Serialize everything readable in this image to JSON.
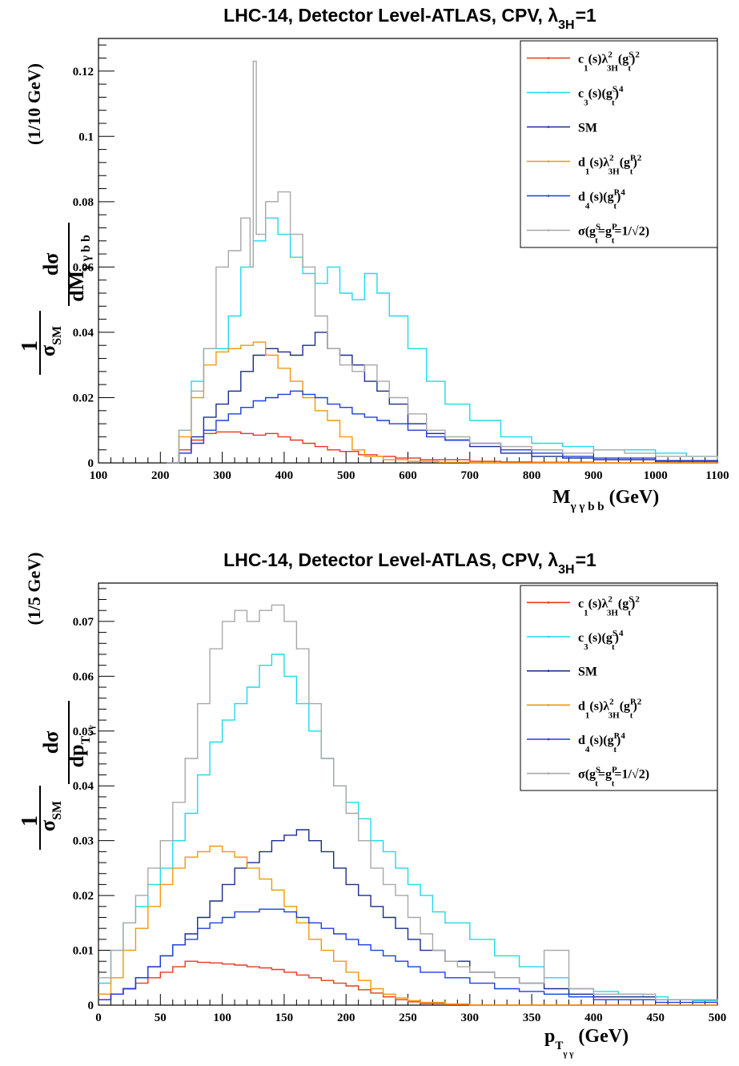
{
  "chart_data": [
    {
      "type": "line",
      "title": {
        "main": "LHC-14, Detector Level-ATLAS, CPV,  λ",
        "sub": "3H",
        "tail": "=1"
      },
      "xlabel": {
        "main": "M",
        "sub": "γ  γ b b",
        "tail": " (GeV)"
      },
      "ylabel": {
        "one": "1",
        "sigma": "σ",
        "sigma_sub": "SM",
        "num": "dσ",
        "den": "dM",
        "den_sub": "γ γ b b",
        "bin": "(1/10 GeV)"
      },
      "xlim": [
        100,
        1100
      ],
      "ylim": [
        0,
        0.13
      ],
      "xticks": [
        100,
        200,
        300,
        400,
        500,
        600,
        700,
        800,
        900,
        1000,
        1100
      ],
      "yticks": [
        0,
        0.02,
        0.04,
        0.06,
        0.08,
        0.1,
        0.12
      ],
      "ytick_labels": [
        "0",
        "0.02",
        "0.04",
        "0.06",
        "0.08",
        "0.1",
        "0.12"
      ],
      "grid": false,
      "legend_position": "top-right",
      "series": [
        {
          "label": {
            "a": "c",
            "a_sub": "1",
            "b": "(s)λ",
            "b_sup": "2",
            "b_sub": "3H",
            "c": "(g",
            "c_sup": "S",
            "c_sub": "t",
            "d": ")",
            "d_sup": "2"
          },
          "color": "#e8391c",
          "x": [
            210,
            230,
            250,
            270,
            290,
            310,
            330,
            350,
            370,
            390,
            410,
            430,
            450,
            470,
            490,
            520,
            550,
            580,
            620,
            660,
            700,
            750,
            800,
            900,
            1000,
            1100
          ],
          "y": [
            0,
            0.004,
            0.007,
            0.009,
            0.0095,
            0.0095,
            0.009,
            0.0085,
            0.009,
            0.008,
            0.007,
            0.006,
            0.005,
            0.004,
            0.0035,
            0.0025,
            0.002,
            0.0015,
            0.001,
            0.001,
            0.0005,
            0.0003,
            0.0002,
            0,
            0,
            0
          ]
        },
        {
          "label": {
            "a": "c",
            "a_sub": "3",
            "b": "(s)",
            "c": "(g",
            "c_sup": "S",
            "c_sub": "t",
            "d": ")",
            "d_sup": "4"
          },
          "color": "#1fd9e9",
          "x": [
            210,
            230,
            250,
            270,
            290,
            310,
            330,
            350,
            370,
            390,
            410,
            430,
            450,
            470,
            490,
            510,
            530,
            550,
            570,
            600,
            630,
            660,
            700,
            750,
            800,
            850,
            900,
            950,
            1000,
            1050,
            1100
          ],
          "y": [
            0,
            0.01,
            0.025,
            0.035,
            0.035,
            0.045,
            0.06,
            0.068,
            0.075,
            0.07,
            0.063,
            0.058,
            0.055,
            0.06,
            0.052,
            0.05,
            0.058,
            0.052,
            0.045,
            0.035,
            0.025,
            0.018,
            0.013,
            0.008,
            0.006,
            0.005,
            0.004,
            0.004,
            0.003,
            0.002,
            0.001
          ]
        },
        {
          "label": {
            "a": "SM"
          },
          "color": "#1a2c8c",
          "x": [
            210,
            230,
            250,
            270,
            290,
            310,
            330,
            350,
            370,
            390,
            410,
            430,
            450,
            470,
            490,
            510,
            530,
            550,
            570,
            600,
            630,
            660,
            700,
            750,
            800,
            850,
            900,
            1000,
            1100
          ],
          "y": [
            0,
            0.003,
            0.008,
            0.014,
            0.018,
            0.022,
            0.028,
            0.033,
            0.035,
            0.034,
            0.033,
            0.036,
            0.04,
            0.035,
            0.033,
            0.03,
            0.025,
            0.022,
            0.018,
            0.012,
            0.009,
            0.007,
            0.005,
            0.003,
            0.002,
            0.0015,
            0.001,
            0.0005,
            0.0003
          ]
        },
        {
          "label": {
            "a": "d",
            "a_sub": "1",
            "b": "(s)λ",
            "b_sup": "2",
            "b_sub": "3H",
            "c": "(g",
            "c_sup": "P",
            "c_sub": "t",
            "d": ")",
            "d_sup": "2"
          },
          "color": "#f4960e",
          "x": [
            210,
            230,
            250,
            270,
            290,
            310,
            330,
            350,
            370,
            390,
            410,
            430,
            450,
            470,
            490,
            510,
            530,
            560,
            600,
            650,
            700,
            800,
            900,
            1100
          ],
          "y": [
            0,
            0.008,
            0.02,
            0.03,
            0.034,
            0.035,
            0.036,
            0.037,
            0.033,
            0.029,
            0.025,
            0.02,
            0.016,
            0.013,
            0.008,
            0.004,
            0.002,
            0.001,
            0.0005,
            0.0002,
            0,
            0,
            0,
            0
          ]
        },
        {
          "label": {
            "a": "d",
            "a_sub": "4",
            "b": "(s)",
            "c": "(g",
            "c_sup": "P",
            "c_sub": "t",
            "d": ")",
            "d_sup": "4"
          },
          "color": "#1c3ee0",
          "x": [
            210,
            230,
            250,
            270,
            290,
            310,
            330,
            350,
            370,
            390,
            410,
            430,
            450,
            470,
            490,
            510,
            530,
            550,
            570,
            600,
            630,
            660,
            700,
            750,
            800,
            850,
            900,
            1000,
            1100
          ],
          "y": [
            0,
            0.003,
            0.006,
            0.01,
            0.013,
            0.015,
            0.017,
            0.019,
            0.02,
            0.021,
            0.022,
            0.021,
            0.02,
            0.018,
            0.017,
            0.015,
            0.014,
            0.013,
            0.012,
            0.01,
            0.008,
            0.007,
            0.006,
            0.004,
            0.003,
            0.002,
            0.0015,
            0.0007,
            0.0003
          ]
        },
        {
          "label": {
            "a": "σ(g",
            "a_sup": "S",
            "a_sub": "t",
            "b": "=g",
            "b_sup": "P",
            "b_sub": "t",
            "c": "=1/√2)"
          },
          "color": "#a8a8a8",
          "x": [
            210,
            230,
            250,
            270,
            290,
            310,
            330,
            345,
            350,
            355,
            370,
            390,
            410,
            430,
            450,
            470,
            490,
            510,
            530,
            550,
            570,
            600,
            630,
            660,
            700,
            750,
            800,
            850,
            900,
            950,
            1000,
            1100
          ],
          "y": [
            0,
            0.01,
            0.022,
            0.035,
            0.06,
            0.065,
            0.075,
            0.06,
            0.123,
            0.07,
            0.08,
            0.083,
            0.07,
            0.06,
            0.045,
            0.035,
            0.03,
            0.028,
            0.03,
            0.025,
            0.02,
            0.015,
            0.01,
            0.008,
            0.006,
            0.005,
            0.004,
            0.003,
            0.004,
            0.003,
            0.002,
            0.001
          ]
        }
      ]
    },
    {
      "type": "line",
      "title": {
        "main": "LHC-14, Detector Level-ATLAS, CPV,  λ",
        "sub": "3H",
        "tail": "=1"
      },
      "xlabel": {
        "main": "p",
        "sub": "T",
        "sub2": "γ γ",
        "tail": " (GeV)"
      },
      "ylabel": {
        "one": "1",
        "sigma": "σ",
        "sigma_sub": "SM",
        "num": "dσ",
        "den": "dp",
        "den_sub": "T",
        "den_sub2": "γ γ",
        "bin": "(1/5 GeV)"
      },
      "xlim": [
        0,
        500
      ],
      "ylim": [
        0,
        0.077
      ],
      "xticks": [
        0,
        50,
        100,
        150,
        200,
        250,
        300,
        350,
        400,
        450,
        500
      ],
      "yticks": [
        0,
        0.01,
        0.02,
        0.03,
        0.04,
        0.05,
        0.06,
        0.07
      ],
      "ytick_labels": [
        "0",
        "0.01",
        "0.02",
        "0.03",
        "0.04",
        "0.05",
        "0.06",
        "0.07"
      ],
      "grid": false,
      "legend_position": "top-right",
      "series": [
        {
          "label": {
            "a": "c",
            "a_sub": "1",
            "b": "(s)λ",
            "b_sup": "2",
            "b_sub": "3H",
            "c": "(g",
            "c_sup": "S",
            "c_sub": "t",
            "d": ")",
            "d_sup": "2"
          },
          "color": "#e8391c",
          "x": [
            0,
            10,
            20,
            30,
            40,
            50,
            60,
            70,
            80,
            90,
            100,
            110,
            120,
            130,
            140,
            150,
            160,
            170,
            180,
            190,
            200,
            210,
            220,
            230,
            240,
            250,
            260,
            280,
            300,
            350,
            400,
            450,
            500
          ],
          "y": [
            0.001,
            0.002,
            0.003,
            0.004,
            0.005,
            0.006,
            0.007,
            0.008,
            0.0078,
            0.0077,
            0.0075,
            0.0073,
            0.007,
            0.0068,
            0.0065,
            0.006,
            0.0055,
            0.005,
            0.0045,
            0.004,
            0.0035,
            0.0028,
            0.0022,
            0.0015,
            0.001,
            0.0006,
            0.0003,
            0.0001,
            0,
            0,
            0,
            0,
            0
          ]
        },
        {
          "label": {
            "a": "c",
            "a_sub": "3",
            "b": "(s)",
            "c": "(g",
            "c_sup": "S",
            "c_sub": "t",
            "d": ")",
            "d_sup": "4"
          },
          "color": "#1fd9e9",
          "x": [
            0,
            10,
            20,
            30,
            40,
            50,
            60,
            70,
            80,
            90,
            100,
            110,
            120,
            130,
            140,
            150,
            160,
            170,
            180,
            190,
            200,
            210,
            220,
            230,
            240,
            250,
            260,
            270,
            280,
            300,
            320,
            340,
            360,
            380,
            400,
            420,
            440,
            460,
            480,
            500
          ],
          "y": [
            0.004,
            0.01,
            0.015,
            0.018,
            0.022,
            0.025,
            0.03,
            0.035,
            0.042,
            0.048,
            0.052,
            0.055,
            0.058,
            0.062,
            0.064,
            0.06,
            0.055,
            0.05,
            0.045,
            0.04,
            0.037,
            0.034,
            0.03,
            0.028,
            0.025,
            0.022,
            0.02,
            0.017,
            0.015,
            0.012,
            0.009,
            0.007,
            0.005,
            0.003,
            0.0025,
            0.002,
            0.0015,
            0.001,
            0.0008,
            0.0005
          ]
        },
        {
          "label": {
            "a": "SM"
          },
          "color": "#1a2c8c",
          "x": [
            0,
            10,
            20,
            30,
            40,
            50,
            60,
            70,
            80,
            90,
            100,
            110,
            120,
            130,
            140,
            150,
            160,
            170,
            180,
            190,
            200,
            210,
            220,
            230,
            240,
            250,
            260,
            280,
            300,
            320,
            340,
            360,
            380,
            400,
            450,
            500
          ],
          "y": [
            0.001,
            0.002,
            0.003,
            0.005,
            0.007,
            0.009,
            0.011,
            0.013,
            0.016,
            0.019,
            0.022,
            0.025,
            0.026,
            0.028,
            0.03,
            0.031,
            0.032,
            0.03,
            0.028,
            0.025,
            0.022,
            0.02,
            0.018,
            0.016,
            0.014,
            0.012,
            0.01,
            0.008,
            0.006,
            0.005,
            0.004,
            0.003,
            0.002,
            0.0015,
            0.001,
            0.0005
          ]
        },
        {
          "label": {
            "a": "d",
            "a_sub": "1",
            "b": "(s)λ",
            "b_sup": "2",
            "b_sub": "3H",
            "c": "(g",
            "c_sup": "P",
            "c_sub": "t",
            "d": ")",
            "d_sup": "2"
          },
          "color": "#f4960e",
          "x": [
            0,
            10,
            20,
            30,
            40,
            50,
            60,
            70,
            80,
            90,
            100,
            110,
            120,
            130,
            140,
            150,
            160,
            170,
            180,
            190,
            200,
            210,
            220,
            230,
            240,
            250,
            260,
            280,
            300,
            350,
            400,
            500
          ],
          "y": [
            0.002,
            0.005,
            0.01,
            0.014,
            0.018,
            0.022,
            0.025,
            0.027,
            0.028,
            0.029,
            0.028,
            0.027,
            0.025,
            0.023,
            0.021,
            0.018,
            0.015,
            0.012,
            0.01,
            0.008,
            0.006,
            0.0045,
            0.003,
            0.002,
            0.0013,
            0.0008,
            0.0005,
            0.0002,
            0,
            0,
            0,
            0
          ]
        },
        {
          "label": {
            "a": "d",
            "a_sub": "4",
            "b": "(s)",
            "c": "(g",
            "c_sup": "P",
            "c_sub": "t",
            "d": ")",
            "d_sup": "4"
          },
          "color": "#1c3ee0",
          "x": [
            0,
            10,
            20,
            30,
            40,
            50,
            60,
            70,
            80,
            90,
            100,
            110,
            120,
            130,
            140,
            150,
            160,
            170,
            180,
            190,
            200,
            210,
            220,
            230,
            240,
            250,
            260,
            280,
            300,
            320,
            340,
            360,
            380,
            400,
            450,
            500
          ],
          "y": [
            0.001,
            0.002,
            0.003,
            0.005,
            0.007,
            0.009,
            0.011,
            0.012,
            0.014,
            0.015,
            0.016,
            0.017,
            0.017,
            0.0175,
            0.0175,
            0.017,
            0.016,
            0.015,
            0.014,
            0.013,
            0.012,
            0.011,
            0.01,
            0.009,
            0.008,
            0.007,
            0.006,
            0.005,
            0.004,
            0.003,
            0.0025,
            0.002,
            0.0015,
            0.001,
            0.0005,
            0.0003
          ]
        },
        {
          "label": {
            "a": "σ(g",
            "a_sup": "S",
            "a_sub": "t",
            "b": "=g",
            "b_sup": "P",
            "b_sub": "t",
            "c": "=1/√2)"
          },
          "color": "#a8a8a8",
          "x": [
            0,
            10,
            20,
            30,
            40,
            50,
            60,
            70,
            80,
            90,
            100,
            110,
            120,
            130,
            140,
            150,
            160,
            170,
            180,
            190,
            200,
            210,
            220,
            230,
            240,
            250,
            260,
            270,
            280,
            290,
            300,
            320,
            340,
            360,
            380,
            400,
            450,
            500
          ],
          "y": [
            0.005,
            0.01,
            0.015,
            0.02,
            0.025,
            0.03,
            0.037,
            0.045,
            0.055,
            0.065,
            0.07,
            0.072,
            0.07,
            0.072,
            0.073,
            0.07,
            0.065,
            0.055,
            0.045,
            0.04,
            0.035,
            0.03,
            0.025,
            0.022,
            0.02,
            0.016,
            0.013,
            0.01,
            0.008,
            0.007,
            0.006,
            0.005,
            0.004,
            0.01,
            0.003,
            0.002,
            0.001,
            0.0005
          ]
        }
      ]
    }
  ]
}
